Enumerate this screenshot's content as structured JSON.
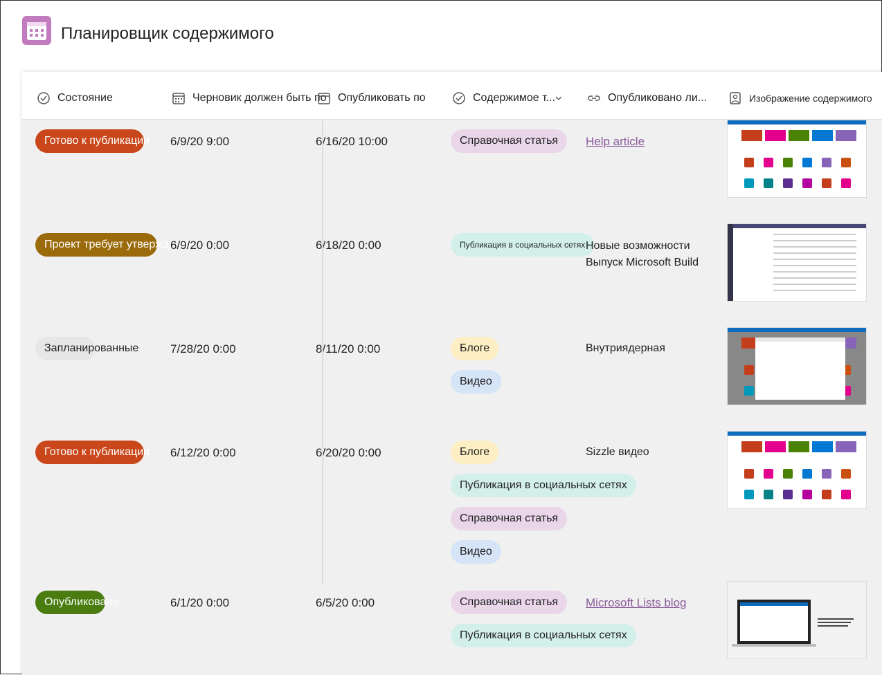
{
  "header": {
    "title": "Планировщик содержимого"
  },
  "table": {
    "columns": [
      "Состояние",
      "Черновик должен быть по",
      "Опубликовать по",
      "Содержимое т...",
      "Опубликовано ли...",
      "Изображение содержимого"
    ],
    "rows": [
      {
        "status": {
          "text": "Готово к публикации",
          "color": "#c9471b"
        },
        "draft": "6/9/20 9:00",
        "publish": "6/16/20 10:00",
        "content_types": [
          {
            "text": "Справочная статья",
            "color": "#e9d6e9"
          }
        ],
        "published": {
          "lines": [
            "Help article"
          ],
          "link": true
        }
      },
      {
        "status": {
          "text": "Проект требует утверждения",
          "color": "#9a6a0b"
        },
        "draft": "6/9/20 0:00",
        "publish": "6/18/20 0:00",
        "content_types": [
          {
            "text": "Публикация в социальных сетях",
            "color": "#d3efea"
          }
        ],
        "published": {
          "lines": [
            "Новые возможности",
            "Выпуск Microsoft Build"
          ],
          "link": false
        }
      },
      {
        "status": {
          "text": "Запланированные",
          "color": "#e6e6e6"
        },
        "draft": "7/28/20 0:00",
        "publish": "8/11/20 0:00",
        "content_types": [
          {
            "text": "Блоге",
            "color": "#fdefc3"
          },
          {
            "text": "Видео",
            "color": "#d5e4f6"
          }
        ],
        "published": {
          "lines": [
            "Внутриядерная"
          ],
          "link": false
        }
      },
      {
        "status": {
          "text": "Готово к публикации",
          "color": "#c9471b"
        },
        "draft": "6/12/20 0:00",
        "publish": "6/20/20 0:00",
        "content_types": [
          {
            "text": "Блоге",
            "color": "#fdefc3"
          },
          {
            "text": "Публикация в социальных сетях",
            "color": "#d3efea"
          },
          {
            "text": "Справочная статья",
            "color": "#e9d6e9"
          },
          {
            "text": "Видео",
            "color": "#d5e4f6"
          }
        ],
        "published": {
          "lines": [
            "Sizzle видео"
          ],
          "link": false
        }
      },
      {
        "status": {
          "text": "Опубликовано",
          "color": "#4a7c10"
        },
        "draft": "6/1/20 0:00",
        "publish": "6/5/20 0:00",
        "content_types": [
          {
            "text": "Справочная статья",
            "color": "#e9d6e9"
          },
          {
            "text": "Публикация в социальных сетях",
            "color": "#d3efea"
          }
        ],
        "published": {
          "lines": [
            "Microsoft Lists blog"
          ],
          "link": true
        }
      }
    ]
  }
}
